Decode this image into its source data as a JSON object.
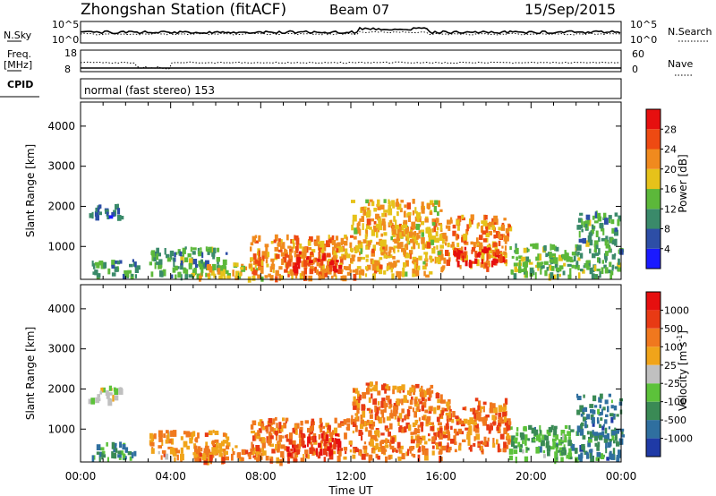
{
  "header": {
    "station": "Zhongshan Station (fitACF)",
    "beam": "Beam 07",
    "date": "15/Sep/2015"
  },
  "top_panels": {
    "nsky_label": "N.Sky",
    "nsky_ticks": [
      "10^5",
      "10^0"
    ],
    "nsearch_label": "N.Search",
    "nsearch_ticks": [
      "10^5",
      "10^0"
    ],
    "freq_label": "Freq.",
    "freq_unit": "[MHz]",
    "freq_ticks": [
      "18",
      "8"
    ],
    "nave_label": "Nave",
    "nave_ticks": [
      "60",
      "0"
    ],
    "cpid_label": "CPID",
    "cpid_value": "normal (fast stereo) 153"
  },
  "chart_data": [
    {
      "type": "heatmap",
      "name": "power",
      "ylabel": "Slant Range [km]",
      "ylim": [
        180,
        4600
      ],
      "yticks": [
        1000,
        2000,
        3000,
        4000
      ],
      "xlim": [
        0,
        24
      ],
      "colorbar_label": "Power [dB]",
      "colorbar_ticks": [
        "4",
        "8",
        "12",
        "16",
        "20",
        "24",
        "28"
      ],
      "colorbar_colors": [
        "#1a1aff",
        "#2d4ea6",
        "#3a8a6a",
        "#5cb83a",
        "#e6c21a",
        "#f08a1e",
        "#ee4a12",
        "#e60f0f"
      ],
      "regions": [
        {
          "t": [
            0.3,
            1.8
          ],
          "r": [
            1750,
            2100
          ],
          "level": 1.5
        },
        {
          "t": [
            0.5,
            2.5
          ],
          "r": [
            300,
            700
          ],
          "level": 2
        },
        {
          "t": [
            3.0,
            6.5
          ],
          "r": [
            300,
            1000
          ],
          "level": 2.5
        },
        {
          "t": [
            5.0,
            8.0
          ],
          "r": [
            250,
            600
          ],
          "level": 4
        },
        {
          "t": [
            7.5,
            12.0
          ],
          "r": [
            250,
            1300
          ],
          "level": 5
        },
        {
          "t": [
            9.0,
            11.5
          ],
          "r": [
            400,
            900
          ],
          "level": 6.2
        },
        {
          "t": [
            12.0,
            16.0
          ],
          "r": [
            300,
            2200
          ],
          "level": 4.5
        },
        {
          "t": [
            16.0,
            19.0
          ],
          "r": [
            500,
            1800
          ],
          "level": 5
        },
        {
          "t": [
            16.5,
            18.8
          ],
          "r": [
            600,
            1000
          ],
          "level": 6.6
        },
        {
          "t": [
            19.0,
            22.0
          ],
          "r": [
            300,
            1100
          ],
          "level": 3
        },
        {
          "t": [
            22.0,
            24.0
          ],
          "r": [
            300,
            1900
          ],
          "level": 2.5
        }
      ]
    },
    {
      "type": "heatmap",
      "name": "velocity",
      "ylabel": "Slant Range [km]",
      "ylim": [
        180,
        4600
      ],
      "yticks": [
        1000,
        2000,
        3000,
        4000
      ],
      "xlim": [
        0,
        24
      ],
      "xticks": [
        "00:00",
        "04:00",
        "08:00",
        "12:00",
        "16:00",
        "20:00",
        "00:00"
      ],
      "xlabel": "Time UT",
      "colorbar_label": "Velocity [m s",
      "colorbar_superscript": "-1",
      "colorbar_label_end": "]",
      "colorbar_ticks": [
        "1000",
        "500",
        "100",
        "25",
        "-25",
        "-100",
        "-500",
        "-1000"
      ],
      "colorbar_colors": [
        "#1f3aa6",
        "#2f6f9f",
        "#3a8a55",
        "#5cc23a",
        "#c0c0c0",
        "#f0a41a",
        "#f0781e",
        "#e83a14",
        "#e60f0f"
      ],
      "regions": [
        {
          "t": [
            0.3,
            1.8
          ],
          "r": [
            1750,
            2100
          ],
          "level": 4
        },
        {
          "t": [
            0.5,
            2.5
          ],
          "r": [
            300,
            700
          ],
          "level": 2
        },
        {
          "t": [
            3.0,
            6.5
          ],
          "r": [
            300,
            1000
          ],
          "level": 5.5
        },
        {
          "t": [
            5.0,
            8.0
          ],
          "r": [
            250,
            600
          ],
          "level": 5.8
        },
        {
          "t": [
            7.5,
            12.0
          ],
          "r": [
            250,
            1300
          ],
          "level": 6
        },
        {
          "t": [
            9.0,
            11.5
          ],
          "r": [
            400,
            900
          ],
          "level": 7.2
        },
        {
          "t": [
            12.0,
            16.0
          ],
          "r": [
            300,
            2200
          ],
          "level": 6
        },
        {
          "t": [
            16.0,
            19.0
          ],
          "r": [
            500,
            1800
          ],
          "level": 6.2
        },
        {
          "t": [
            19.0,
            22.0
          ],
          "r": [
            300,
            1100
          ],
          "level": 2.5
        },
        {
          "t": [
            22.0,
            24.0
          ],
          "r": [
            300,
            1900
          ],
          "level": 1.5
        }
      ]
    }
  ]
}
